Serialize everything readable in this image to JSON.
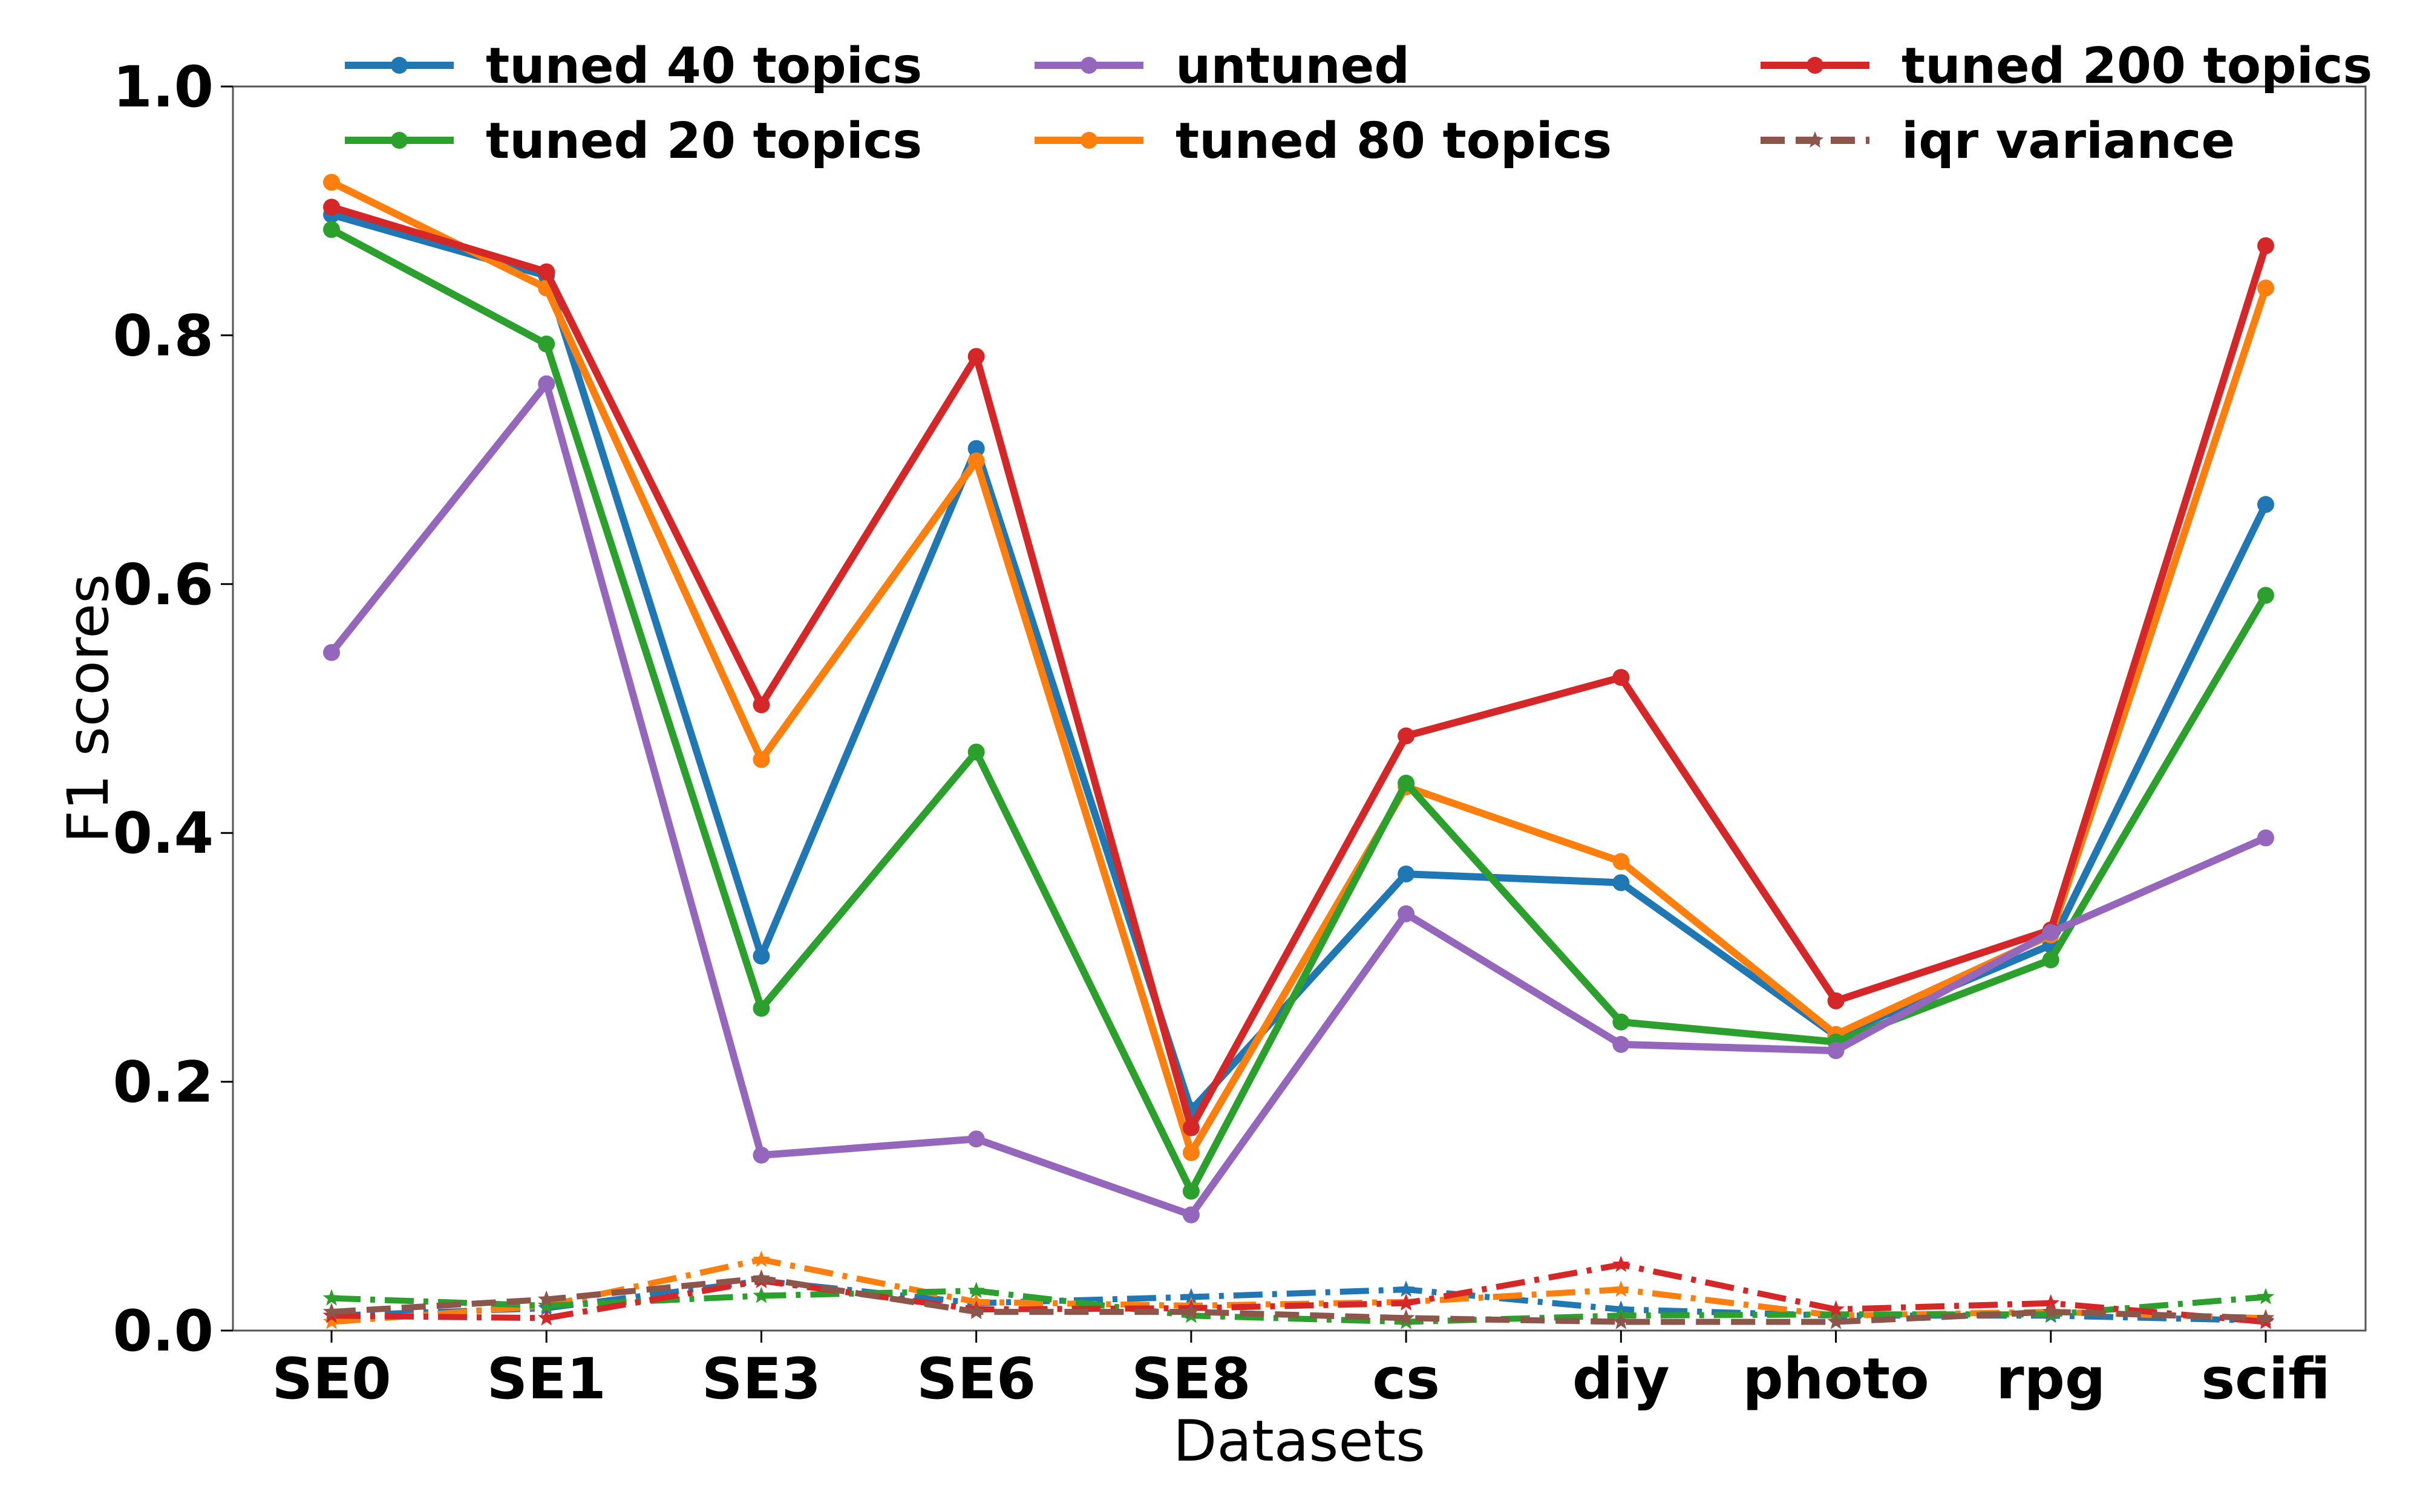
{
  "chart_data": {
    "type": "line",
    "title": "",
    "xlabel": "Datasets",
    "ylabel": "F1 scores",
    "ylim": [
      0,
      1.0
    ],
    "yticks": [
      "0.0",
      "0.2",
      "0.4",
      "0.6",
      "0.8",
      "1.0"
    ],
    "categories": [
      "SE0",
      "SE1",
      "SE3",
      "SE6",
      "SE8",
      "cs",
      "diy",
      "photo",
      "rpg",
      "scifi"
    ],
    "grid": false,
    "legend_position": "top",
    "series": [
      {
        "name": "tuned 40 topics",
        "color": "#1f77b4",
        "style": "solid",
        "marker": "circle",
        "values": [
          0.897,
          0.848,
          0.301,
          0.709,
          0.177,
          0.367,
          0.36,
          0.237,
          0.31,
          0.664
        ]
      },
      {
        "name": "tuned 80 topics",
        "color": "#ff7f0e",
        "style": "solid",
        "marker": "circle",
        "values": [
          0.923,
          0.838,
          0.459,
          0.699,
          0.143,
          0.437,
          0.377,
          0.238,
          0.318,
          0.838
        ]
      },
      {
        "name": "tuned 20 topics",
        "color": "#2ca02c",
        "style": "solid",
        "marker": "circle",
        "values": [
          0.885,
          0.793,
          0.259,
          0.465,
          0.112,
          0.44,
          0.248,
          0.232,
          0.298,
          0.591
        ]
      },
      {
        "name": "tuned 200 topics",
        "color": "#d62728",
        "style": "solid",
        "marker": "circle",
        "values": [
          0.903,
          0.851,
          0.503,
          0.783,
          0.163,
          0.478,
          0.525,
          0.265,
          0.322,
          0.872
        ]
      },
      {
        "name": "untuned",
        "color": "#9467bd",
        "style": "solid",
        "marker": "circle",
        "values": [
          0.545,
          0.761,
          0.141,
          0.154,
          0.093,
          0.335,
          0.23,
          0.225,
          0.32,
          0.396
        ]
      },
      {
        "name": "",
        "color": "#1f77b4",
        "style": "dashdot",
        "marker": "star",
        "legend": false,
        "values": [
          0.012,
          0.018,
          0.04,
          0.022,
          0.027,
          0.033,
          0.017,
          0.012,
          0.012,
          0.008
        ]
      },
      {
        "name": "",
        "color": "#ff7f0e",
        "style": "dashdot",
        "marker": "star",
        "legend": false,
        "values": [
          0.007,
          0.02,
          0.057,
          0.023,
          0.02,
          0.023,
          0.033,
          0.012,
          0.015,
          0.01
        ]
      },
      {
        "name": "",
        "color": "#2ca02c",
        "style": "dashdot",
        "marker": "star",
        "legend": false,
        "values": [
          0.026,
          0.02,
          0.028,
          0.032,
          0.012,
          0.007,
          0.012,
          0.013,
          0.013,
          0.027
        ]
      },
      {
        "name": "",
        "color": "#d62728",
        "style": "dashdot",
        "marker": "star",
        "legend": false,
        "values": [
          0.012,
          0.01,
          0.04,
          0.017,
          0.018,
          0.022,
          0.053,
          0.017,
          0.022,
          0.007
        ]
      },
      {
        "name": "iqr variance",
        "color": "#8c564b",
        "style": "dashed",
        "marker": "star",
        "values": [
          0.015,
          0.025,
          0.042,
          0.015,
          0.015,
          0.01,
          0.007,
          0.007,
          0.015,
          0.01
        ]
      }
    ]
  }
}
